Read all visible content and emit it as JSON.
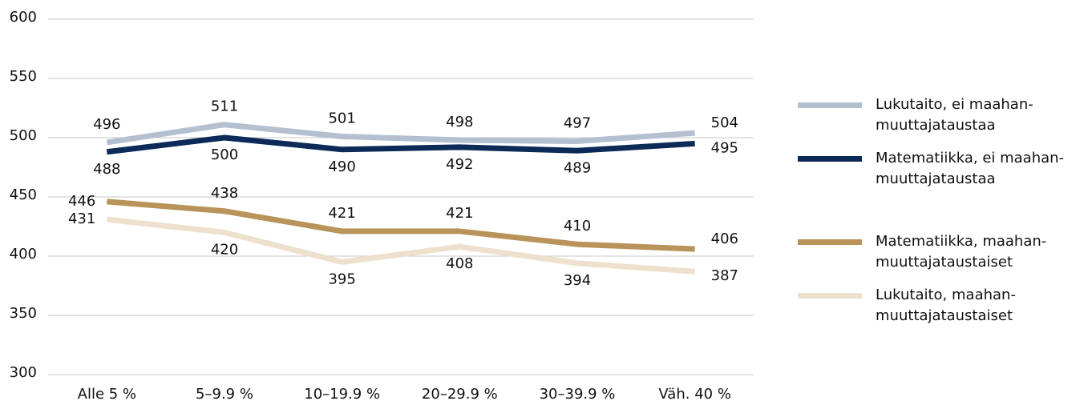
{
  "chart_data": {
    "type": "line",
    "categories": [
      "Alle 5 %",
      "5–9.9 %",
      "10–19.9 %",
      "20–29.9 %",
      "30–39.9 %",
      "Väh. 40 %"
    ],
    "series": [
      {
        "name": "Lukutaito, ei maahan-\nmuuttajataustaa",
        "color": "#b4c0d0",
        "values": [
          496,
          511,
          501,
          498,
          497,
          504
        ]
      },
      {
        "name": "Matematiikka, ei maahan-\nmuuttajataustaa",
        "color": "#0c2a57",
        "values": [
          488,
          500,
          490,
          492,
          489,
          495
        ]
      },
      {
        "name": "Matematiikka, maahan-\nmuuttajataustaiset",
        "color": "#b8945a",
        "values": [
          446,
          438,
          421,
          421,
          410,
          406
        ]
      },
      {
        "name": "Lukutaito, maahan-\nmuuttajataustaiset",
        "color": "#ede1cd",
        "values": [
          431,
          420,
          395,
          408,
          394,
          387
        ]
      }
    ],
    "ylim": [
      300,
      600
    ],
    "yticks": [
      300,
      350,
      400,
      450,
      500,
      550,
      600
    ],
    "grid": true,
    "legend": "right"
  }
}
